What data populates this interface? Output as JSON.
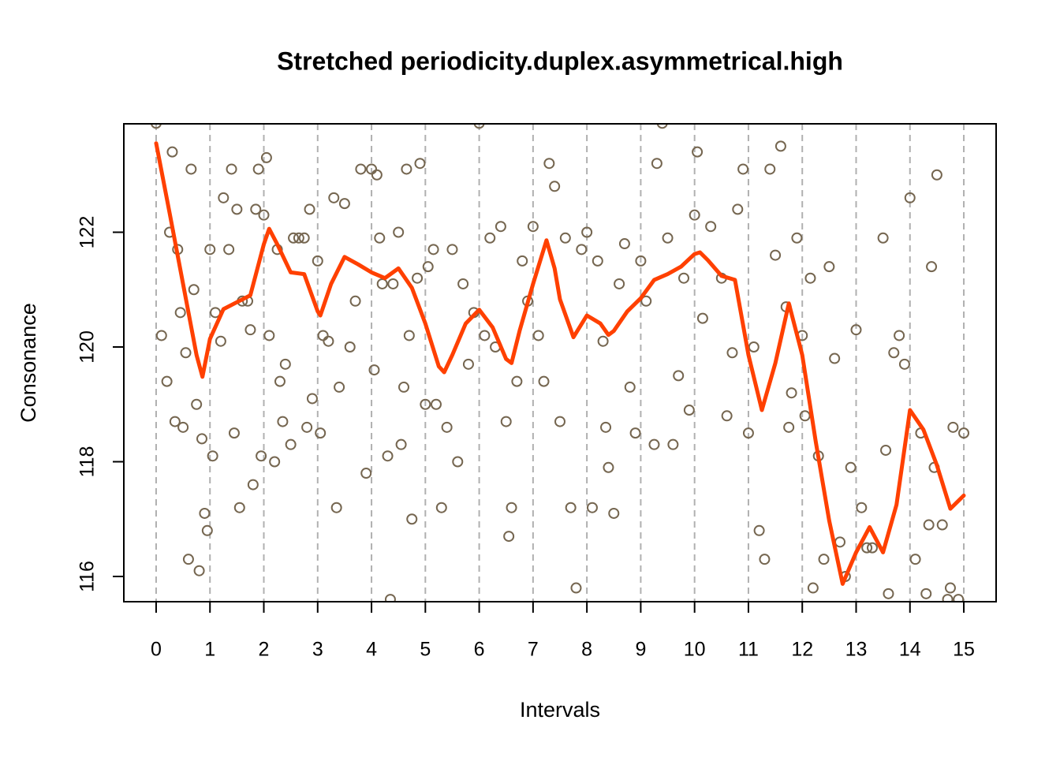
{
  "chart_data": {
    "type": "scatter",
    "title": "Stretched periodicity.duplex.asymmetrical.high",
    "x_label": "Intervals",
    "y_label": "Consonance",
    "x": [
      0.0,
      0.1,
      0.2,
      0.25,
      0.3,
      0.35,
      0.4,
      0.45,
      0.5,
      0.55,
      0.6,
      0.65,
      0.7,
      0.75,
      0.8,
      0.85,
      0.9,
      0.95,
      1.0,
      1.05,
      1.1,
      1.2,
      1.25,
      1.35,
      1.4,
      1.45,
      1.5,
      1.55,
      1.6,
      1.7,
      1.75,
      1.8,
      1.85,
      1.9,
      1.95,
      2.0,
      2.05,
      2.1,
      2.2,
      2.25,
      2.3,
      2.35,
      2.4,
      2.5,
      2.55,
      2.65,
      2.75,
      2.8,
      2.85,
      2.9,
      3.0,
      3.05,
      3.1,
      3.2,
      3.3,
      3.35,
      3.4,
      3.5,
      3.6,
      3.7,
      3.8,
      3.9,
      4.0,
      4.05,
      4.1,
      4.15,
      4.2,
      4.3,
      4.35,
      4.4,
      4.5,
      4.55,
      4.6,
      4.65,
      4.7,
      4.75,
      4.85,
      4.9,
      5.0,
      5.05,
      5.15,
      5.2,
      5.3,
      5.4,
      5.5,
      5.6,
      5.7,
      5.8,
      5.9,
      6.0,
      6.1,
      6.2,
      6.3,
      6.4,
      6.5,
      6.55,
      6.6,
      6.7,
      6.8,
      6.9,
      7.0,
      7.1,
      7.2,
      7.3,
      7.4,
      7.5,
      7.6,
      7.7,
      7.8,
      7.9,
      8.0,
      8.1,
      8.2,
      8.3,
      8.35,
      8.4,
      8.5,
      8.6,
      8.7,
      8.8,
      8.9,
      9.0,
      9.1,
      9.25,
      9.3,
      9.4,
      9.5,
      9.6,
      9.7,
      9.8,
      9.9,
      10.0,
      10.05,
      10.15,
      10.3,
      10.5,
      10.6,
      10.7,
      10.8,
      10.9,
      11.0,
      11.1,
      11.2,
      11.3,
      11.4,
      11.5,
      11.6,
      11.7,
      11.75,
      11.8,
      11.9,
      12.0,
      12.05,
      12.15,
      12.2,
      12.3,
      12.4,
      12.5,
      12.6,
      12.7,
      12.8,
      12.9,
      13.0,
      13.1,
      13.2,
      13.3,
      13.5,
      13.55,
      13.6,
      13.7,
      13.8,
      13.9,
      14.0,
      14.1,
      14.2,
      14.3,
      14.35,
      14.4,
      14.45,
      14.5,
      14.6,
      14.7,
      14.75,
      14.8,
      14.9,
      15.0
    ],
    "values": [
      123.9,
      120.2,
      119.4,
      122.0,
      123.4,
      118.7,
      121.7,
      120.6,
      118.6,
      119.9,
      116.3,
      123.1,
      121.0,
      119.0,
      116.1,
      118.4,
      117.1,
      116.8,
      121.7,
      118.1,
      120.6,
      120.1,
      122.6,
      121.7,
      123.1,
      118.5,
      122.4,
      117.2,
      120.8,
      120.8,
      120.3,
      117.6,
      122.4,
      123.1,
      118.1,
      122.3,
      123.3,
      120.2,
      118.0,
      121.7,
      119.4,
      118.7,
      119.7,
      118.3,
      121.9,
      121.9,
      121.9,
      118.6,
      122.4,
      119.1,
      121.5,
      118.5,
      120.2,
      120.1,
      122.6,
      117.2,
      119.3,
      122.5,
      120.0,
      120.8,
      123.1,
      117.8,
      123.1,
      119.6,
      123.0,
      121.9,
      121.1,
      118.1,
      115.6,
      121.1,
      122.0,
      118.3,
      119.3,
      123.1,
      120.2,
      117.0,
      121.2,
      123.2,
      119.0,
      121.4,
      121.7,
      119.0,
      117.2,
      118.6,
      121.7,
      118.0,
      121.1,
      119.7,
      120.6,
      123.9,
      120.2,
      121.9,
      120.0,
      122.1,
      118.7,
      116.7,
      117.2,
      119.4,
      121.5,
      120.8,
      122.1,
      120.2,
      119.4,
      123.2,
      122.8,
      118.7,
      121.9,
      117.2,
      115.8,
      121.7,
      122.0,
      117.2,
      121.5,
      120.1,
      118.6,
      117.9,
      117.1,
      121.1,
      121.8,
      119.3,
      118.5,
      121.5,
      120.8,
      118.3,
      123.2,
      123.9,
      121.9,
      118.3,
      119.5,
      121.2,
      118.9,
      122.3,
      123.4,
      120.5,
      122.1,
      121.2,
      118.8,
      119.9,
      122.4,
      123.1,
      118.5,
      120.0,
      116.8,
      116.3,
      123.1,
      121.6,
      123.5,
      120.7,
      118.6,
      119.2,
      121.9,
      120.2,
      118.8,
      121.2,
      115.8,
      118.1,
      116.3,
      121.4,
      119.8,
      116.6,
      116.0,
      117.9,
      120.3,
      117.2,
      116.5,
      116.5,
      121.9,
      118.2,
      115.7,
      119.9,
      120.2,
      119.7,
      122.6,
      116.3,
      118.5,
      115.7,
      116.9,
      121.4,
      117.9,
      123.0,
      116.9,
      115.6,
      115.8,
      118.6,
      115.6,
      118.5
    ],
    "color": "#756650",
    "smooth": {
      "color": "#ff4000",
      "x": [
        0,
        0.25,
        0.5,
        0.75,
        0.86,
        1.0,
        1.25,
        1.5,
        1.75,
        2.0,
        2.1,
        2.25,
        2.5,
        2.75,
        3.0,
        3.05,
        3.25,
        3.5,
        3.75,
        4.0,
        4.25,
        4.5,
        4.75,
        5.0,
        5.25,
        5.35,
        5.5,
        5.75,
        6.0,
        6.25,
        6.5,
        6.6,
        6.75,
        7.0,
        7.25,
        7.4,
        7.5,
        7.75,
        8.0,
        8.25,
        8.4,
        8.5,
        8.75,
        9.0,
        9.25,
        9.5,
        9.75,
        10.0,
        10.1,
        10.25,
        10.5,
        10.75,
        11.0,
        11.25,
        11.5,
        11.75,
        12.0,
        12.25,
        12.5,
        12.75,
        13.0,
        13.25,
        13.5,
        13.75,
        14.0,
        14.25,
        14.5,
        14.75,
        15.0
      ],
      "values": [
        123.55,
        122.34,
        121.1,
        119.86,
        119.48,
        120.14,
        120.66,
        120.78,
        120.9,
        121.79,
        122.06,
        121.79,
        121.3,
        121.27,
        120.62,
        120.55,
        121.1,
        121.57,
        121.44,
        121.3,
        121.2,
        121.37,
        121.03,
        120.41,
        119.66,
        119.56,
        119.86,
        120.41,
        120.65,
        120.34,
        119.79,
        119.72,
        120.28,
        121.1,
        121.86,
        121.37,
        120.83,
        120.17,
        120.55,
        120.41,
        120.21,
        120.28,
        120.62,
        120.85,
        121.17,
        121.27,
        121.4,
        121.62,
        121.65,
        121.51,
        121.24,
        121.17,
        119.86,
        118.9,
        119.72,
        120.76,
        119.86,
        118.35,
        116.97,
        115.87,
        116.42,
        116.86,
        116.42,
        117.25,
        118.9,
        118.56,
        117.94,
        117.18,
        117.41
      ]
    },
    "xlim": [
      -0.6,
      15.6
    ],
    "ylim": [
      115.56,
      123.89
    ],
    "xticks": [
      0,
      1,
      2,
      3,
      4,
      5,
      6,
      7,
      8,
      9,
      10,
      11,
      12,
      13,
      14,
      15
    ],
    "yticks": [
      116,
      118,
      120,
      122
    ],
    "grid": true
  }
}
